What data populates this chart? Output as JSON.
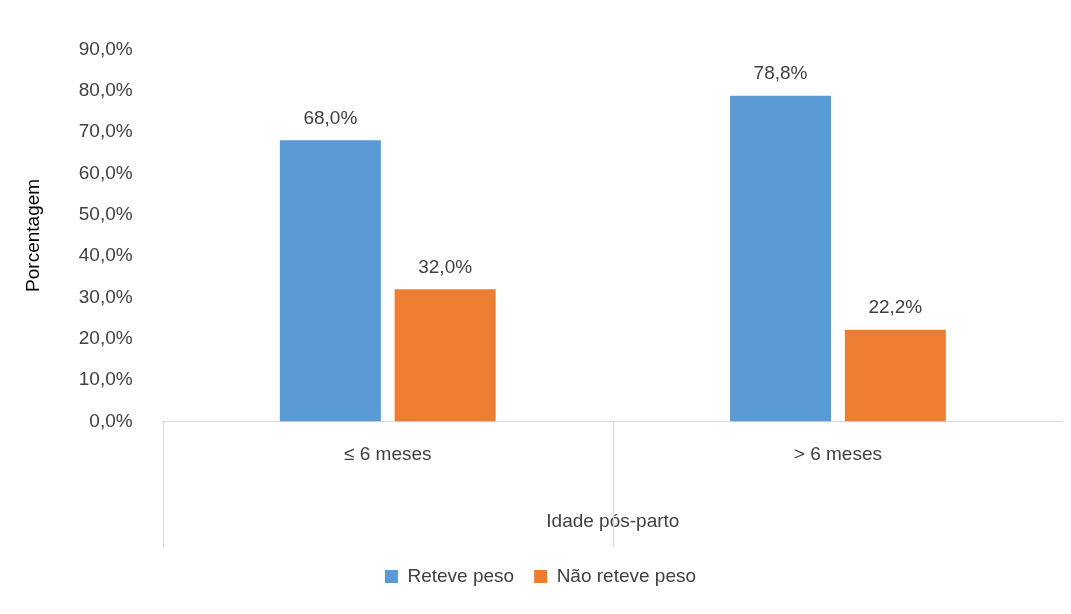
{
  "chart_data": {
    "type": "bar",
    "xlabel": "Idade pós-parto",
    "ylabel": "Porcentagem",
    "categories": [
      "≤ 6 meses",
      "> 6 meses"
    ],
    "series": [
      {
        "name": "Reteve peso",
        "color": "#5b9bd5",
        "values": [
          68.0,
          78.8
        ],
        "value_labels": [
          "68,0%",
          "78,8%"
        ]
      },
      {
        "name": "Não reteve peso",
        "color": "#ed7d31",
        "values": [
          32.0,
          22.2
        ],
        "value_labels": [
          "32,0%",
          "22,2%"
        ]
      }
    ],
    "ylim": [
      0,
      90
    ],
    "yticks": [
      {
        "value": 0,
        "label": "0,0%"
      },
      {
        "value": 10,
        "label": "10,0%"
      },
      {
        "value": 20,
        "label": "20,0%"
      },
      {
        "value": 30,
        "label": "30,0%"
      },
      {
        "value": 40,
        "label": "40,0%"
      },
      {
        "value": 50,
        "label": "50,0%"
      },
      {
        "value": 60,
        "label": "60,0%"
      },
      {
        "value": 70,
        "label": "70,0%"
      },
      {
        "value": 80,
        "label": "80,0%"
      },
      {
        "value": 90,
        "label": "90,0%"
      }
    ],
    "legend": "bottom",
    "grid": false
  }
}
